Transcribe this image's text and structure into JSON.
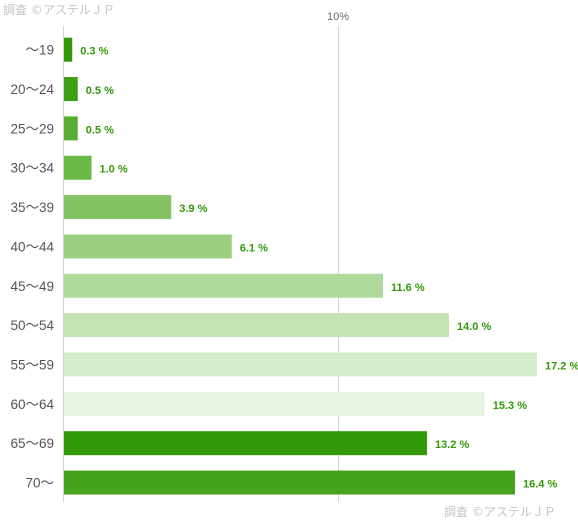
{
  "watermark": {
    "top": "調査 ©アステルＪＰ",
    "bottom": "調査 ©アステルＪＰ"
  },
  "chart_data": {
    "type": "bar",
    "orientation": "horizontal",
    "title": "",
    "xlabel": "",
    "ylabel": "",
    "x_ticks": [
      {
        "value": 10,
        "label": "10%"
      }
    ],
    "xlim": [
      0,
      18.2
    ],
    "grid": true,
    "categories": [
      "〜19",
      "20〜24",
      "25〜29",
      "30〜34",
      "35〜39",
      "40〜44",
      "45〜49",
      "50〜54",
      "55〜59",
      "60〜64",
      "65〜69",
      "70〜"
    ],
    "values": [
      0.3,
      0.5,
      0.5,
      1.0,
      3.9,
      6.1,
      11.6,
      14.0,
      17.2,
      15.3,
      13.2,
      16.4
    ],
    "value_labels": [
      "0.3 %",
      "0.5 %",
      "0.5 %",
      "1.0 %",
      "3.9 %",
      "6.1 %",
      "11.6 %",
      "14.0 %",
      "17.2 %",
      "15.3 %",
      "13.2 %",
      "16.4 %"
    ],
    "bar_colors": [
      "#33990a",
      "#3d9f14",
      "#5aad32",
      "#6ab845",
      "#84c364",
      "#9bd081",
      "#b0da9b",
      "#c4e4b4",
      "#d5ecca",
      "#e8f4e2",
      "#329908",
      "#46a31c"
    ],
    "label_color": "#33990a",
    "axis_color": "#d6d6d6"
  }
}
